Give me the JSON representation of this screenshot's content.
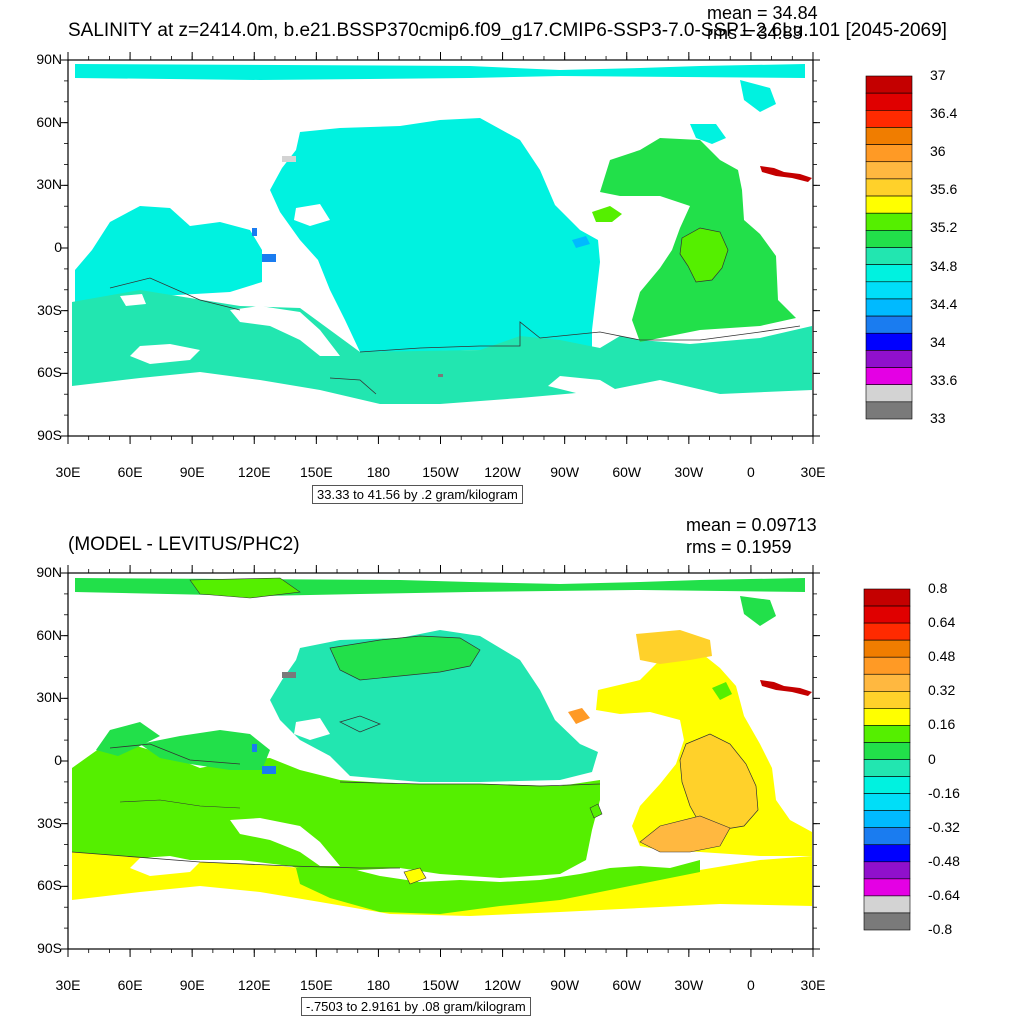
{
  "top_panel": {
    "title": "SALINITY at z=2414.0m, b.e21.BSSP370cmip6.f09_g17.CMIP6-SSP3-7.0-SSP1-2.6Lu.101 [2045-2069]",
    "mean_text": "mean = 34.84",
    "rms_text": "rms = 34.83",
    "range_text": "33.33 to 41.56 by .2 gram/kilogram",
    "lat_labels": [
      "90N",
      "60N",
      "30N",
      "0",
      "30S",
      "60S",
      "90S"
    ],
    "lon_labels": [
      "30E",
      "60E",
      "90E",
      "120E",
      "150E",
      "180",
      "150W",
      "120W",
      "90W",
      "60W",
      "30W",
      "0",
      "30E"
    ],
    "colorbar_labels": [
      "37",
      "36.4",
      "36",
      "35.6",
      "35.2",
      "34.8",
      "34.4",
      "34",
      "33.6",
      "33"
    ],
    "colorbar_colors": [
      "#c40000",
      "#e00000",
      "#ff2a00",
      "#f07d00",
      "#ff9a25",
      "#ffb840",
      "#ffd12a",
      "#ffff00",
      "#55ef00",
      "#22e04a",
      "#22e6b0",
      "#00f2e0",
      "#00def8",
      "#00baff",
      "#1a7cf0",
      "#0000ff",
      "#9010cc",
      "#e400e4",
      "#d3d3d3",
      "#7a7a7a"
    ]
  },
  "bottom_panel": {
    "title": "(MODEL - LEVITUS/PHC2)",
    "mean_text": "mean = 0.09713",
    "rms_text": "rms = 0.1959",
    "range_text": "-.7503 to 2.9161 by .08 gram/kilogram",
    "lat_labels": [
      "90N",
      "60N",
      "30N",
      "0",
      "30S",
      "60S",
      "90S"
    ],
    "lon_labels": [
      "30E",
      "60E",
      "90E",
      "120E",
      "150E",
      "180",
      "150W",
      "120W",
      "90W",
      "60W",
      "30W",
      "0",
      "30E"
    ],
    "colorbar_labels": [
      "0.8",
      "0.64",
      "0.48",
      "0.32",
      "0.16",
      "0",
      "-0.16",
      "-0.32",
      "-0.48",
      "-0.64",
      "-0.8"
    ],
    "colorbar_colors": [
      "#c40000",
      "#e00000",
      "#ff2a00",
      "#f07d00",
      "#ff9a25",
      "#ffb840",
      "#ffd12a",
      "#ffff00",
      "#55ef00",
      "#22e04a",
      "#22e6b0",
      "#00f2e0",
      "#00def8",
      "#00baff",
      "#1a7cf0",
      "#0000ff",
      "#9010cc",
      "#e400e4",
      "#d3d3d3",
      "#7a7a7a"
    ]
  }
}
